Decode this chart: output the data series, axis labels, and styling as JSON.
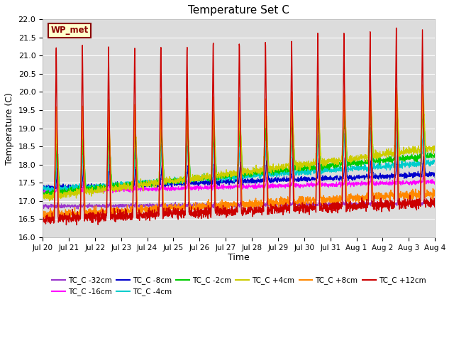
{
  "title": "Temperature Set C",
  "xlabel": "Time",
  "ylabel": "Temperature (C)",
  "ylim": [
    16.0,
    22.0
  ],
  "yticks": [
    16.0,
    16.5,
    17.0,
    17.5,
    18.0,
    18.5,
    19.0,
    19.5,
    20.0,
    20.5,
    21.0,
    21.5,
    22.0
  ],
  "bg_color": "#dcdcdc",
  "fig_color": "#ffffff",
  "wp_label": "WP_met",
  "wp_bg": "#ffffcc",
  "wp_edge": "#8b0000",
  "x_tick_labels": [
    "Jul 20",
    "Jul 21",
    "Jul 22",
    "Jul 23",
    "Jul 24",
    "Jul 25",
    "Jul 26",
    "Jul 27",
    "Jul 28",
    "Jul 29",
    "Jul 30",
    "Jul 31",
    "Aug 1",
    "Aug 2",
    "Aug 3",
    "Aug 4"
  ],
  "series": [
    {
      "label": "TC_C -32cm",
      "color": "#9933cc",
      "lw": 0.8
    },
    {
      "label": "TC_C -16cm",
      "color": "#ff00ff",
      "lw": 0.8
    },
    {
      "label": "TC_C -8cm",
      "color": "#0000cc",
      "lw": 0.9
    },
    {
      "label": "TC_C -4cm",
      "color": "#00cccc",
      "lw": 0.9
    },
    {
      "label": "TC_C -2cm",
      "color": "#00cc00",
      "lw": 0.9
    },
    {
      "label": "TC_C +4cm",
      "color": "#cccc00",
      "lw": 0.9
    },
    {
      "label": "TC_C +8cm",
      "color": "#ff8800",
      "lw": 1.0
    },
    {
      "label": "TC_C +12cm",
      "color": "#cc0000",
      "lw": 1.0
    }
  ],
  "n_days": 15,
  "pts_per_day": 144
}
